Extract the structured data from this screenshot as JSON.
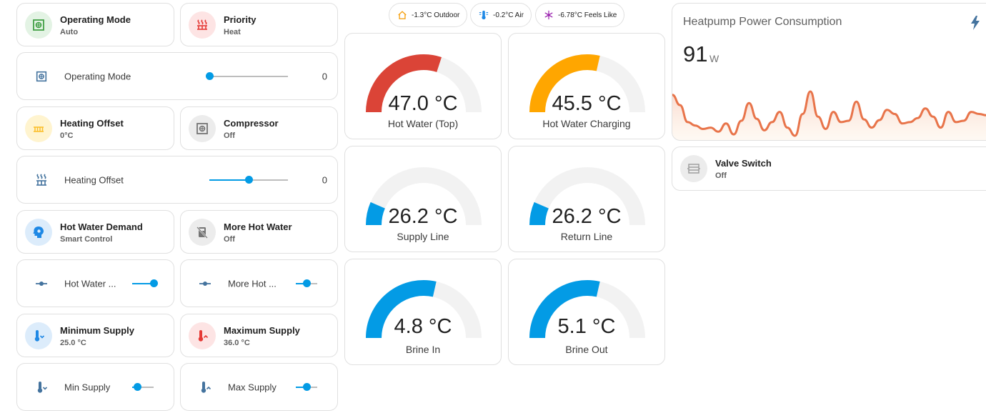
{
  "tiles": {
    "operating_mode": {
      "title": "Operating Mode",
      "state": "Auto",
      "icon": "hvac-icon"
    },
    "priority": {
      "title": "Priority",
      "state": "Heat",
      "icon": "radiator-icon"
    },
    "heating_offset": {
      "title": "Heating Offset",
      "state": "0°C",
      "icon": "radiator-icon"
    },
    "compressor": {
      "title": "Compressor",
      "state": "Off",
      "icon": "hvac-icon"
    },
    "hot_water_demand": {
      "title": "Hot Water Demand",
      "state": "Smart Control",
      "icon": "head-cog-icon"
    },
    "more_hot_water": {
      "title": "More Hot Water",
      "state": "Off",
      "icon": "water-heater-off-icon"
    },
    "minimum_supply": {
      "title": "Minimum Supply",
      "state": "25.0 °C",
      "icon": "thermometer-chevron-down-icon"
    },
    "maximum_supply": {
      "title": "Maximum Supply",
      "state": "36.0 °C",
      "icon": "thermometer-chevron-up-icon"
    },
    "valve_switch": {
      "title": "Valve Switch",
      "state": "Off",
      "icon": "valve-icon"
    }
  },
  "rows": {
    "operating_mode": {
      "label": "Operating Mode",
      "value": "0",
      "level": 0.0
    },
    "heating_offset": {
      "label": "Heating Offset",
      "value": "0",
      "level": 0.5
    },
    "hot_water": {
      "label": "Hot Water ...",
      "level": 1.0
    },
    "more_hot": {
      "label": "More Hot ...",
      "level": 0.5
    },
    "min_supply": {
      "label": "Min Supply",
      "level": 0.25
    },
    "max_supply": {
      "label": "Max Supply",
      "level": 0.5
    }
  },
  "chips": [
    {
      "text": "-1.3°C Outdoor",
      "icon": "home-thermometer-icon",
      "color": "#f59e0b"
    },
    {
      "text": "-0.2°C Air",
      "icon": "thermometer-lines-icon",
      "color": "#1e88e5"
    },
    {
      "text": "-6.78°C Feels Like",
      "icon": "snowflake-thermometer-icon",
      "color": "#9c27b0"
    }
  ],
  "gauges": [
    {
      "value": "47.0 °C",
      "name": "Hot Water (Top)",
      "level": 0.6,
      "color": "#db4437"
    },
    {
      "value": "45.5 °C",
      "name": "Hot Water Charging",
      "level": 0.57,
      "color": "#ffa600"
    },
    {
      "value": "26.2 °C",
      "name": "Supply Line",
      "level": 0.13,
      "color": "#039be5"
    },
    {
      "value": "26.2 °C",
      "name": "Return Line",
      "level": 0.13,
      "color": "#039be5"
    },
    {
      "value": "4.8 °C",
      "name": "Brine In",
      "level": 0.57,
      "color": "#039be5"
    },
    {
      "value": "5.1 °C",
      "name": "Brine Out",
      "level": 0.57,
      "color": "#039be5"
    }
  ],
  "power": {
    "title": "Heatpump Power Consumption",
    "value": "91",
    "unit": "W",
    "icon": "flash-icon",
    "color": "#e8744a",
    "series": [
      120,
      105,
      80,
      75,
      70,
      72,
      66,
      78,
      62,
      82,
      108,
      85,
      68,
      80,
      95,
      72,
      60,
      92,
      125,
      88,
      70,
      95,
      80,
      82,
      110,
      84,
      72,
      83,
      98,
      92,
      78,
      80,
      86,
      100,
      88,
      72,
      95,
      80,
      82,
      95,
      92,
      90
    ]
  }
}
